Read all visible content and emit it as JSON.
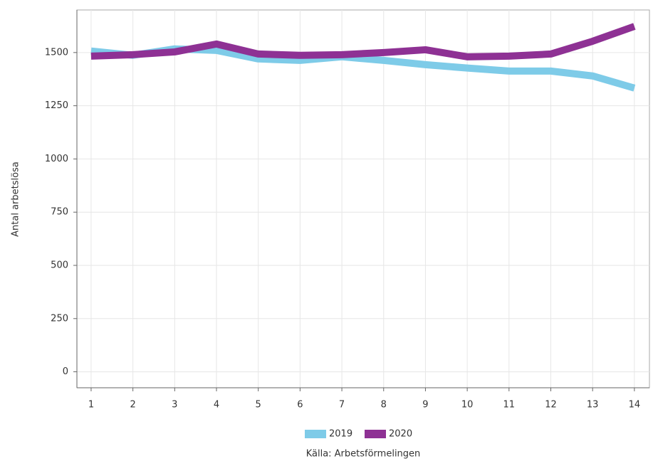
{
  "chart_data": {
    "type": "line",
    "y_label": "Antal arbetslösa",
    "caption": "Källa: Arbetsförmelingen",
    "x": [
      1,
      2,
      3,
      4,
      5,
      6,
      7,
      8,
      9,
      10,
      11,
      12,
      13,
      14
    ],
    "series": [
      {
        "name": "2019",
        "color": "#7ecbe8",
        "values": [
          1507,
          1487,
          1517,
          1510,
          1470,
          1463,
          1480,
          1463,
          1443,
          1427,
          1413,
          1413,
          1390,
          1333
        ]
      },
      {
        "name": "2020",
        "color": "#8e3194",
        "values": [
          1483,
          1490,
          1503,
          1540,
          1493,
          1487,
          1490,
          1500,
          1513,
          1480,
          1483,
          1493,
          1553,
          1623
        ]
      }
    ],
    "xlim": [
      0.66,
      14.36
    ],
    "ylim": [
      -75,
      1700
    ],
    "xticks": [
      1,
      2,
      3,
      4,
      5,
      6,
      7,
      8,
      9,
      10,
      11,
      12,
      13,
      14
    ],
    "yticks": [
      0,
      250,
      500,
      750,
      1000,
      1250,
      1500
    ],
    "grid": true,
    "legend": "bottom"
  }
}
